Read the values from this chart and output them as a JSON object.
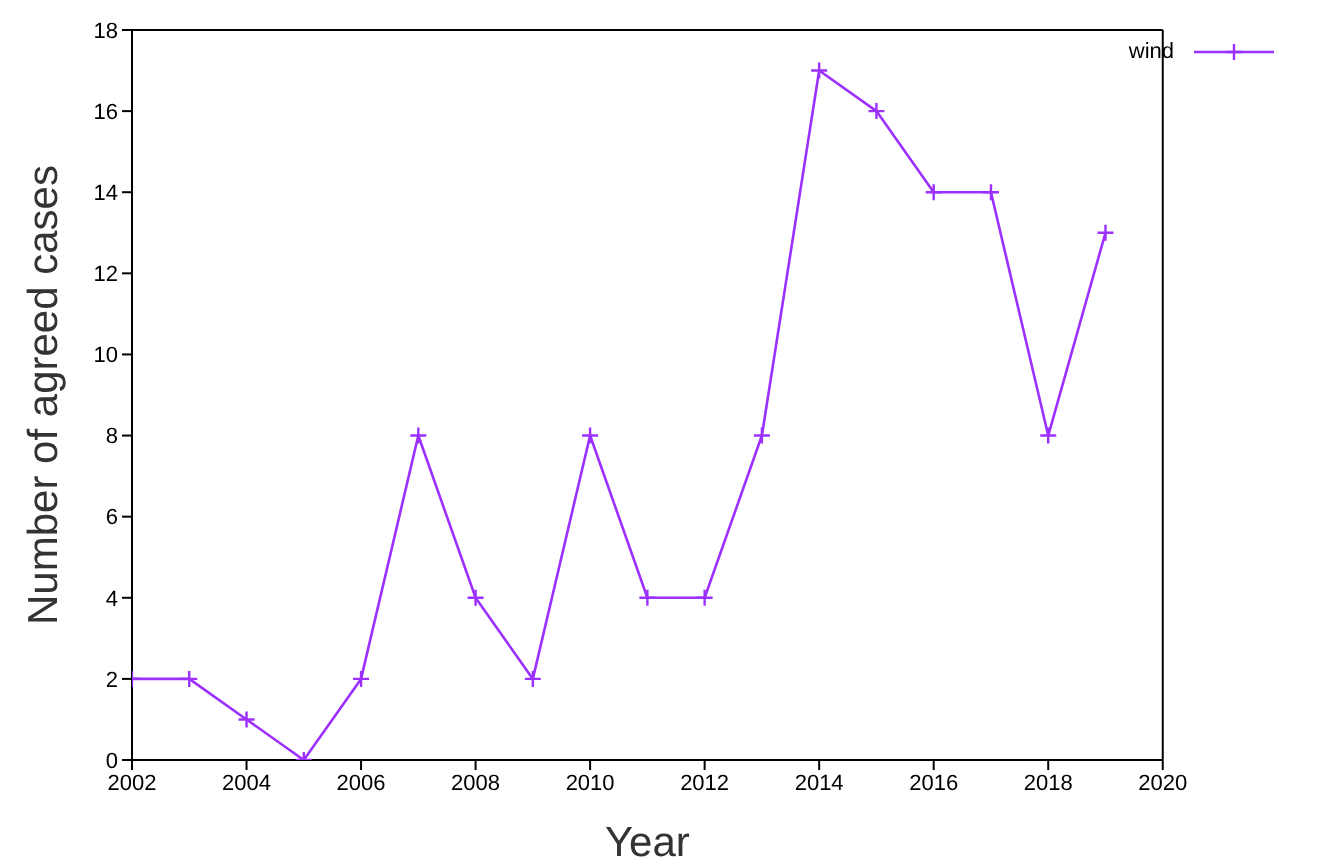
{
  "chart_data": {
    "type": "line",
    "xlabel": "Year",
    "ylabel": "Number of agreed cases",
    "x": [
      2002,
      2003,
      2004,
      2005,
      2006,
      2007,
      2008,
      2009,
      2010,
      2011,
      2012,
      2013,
      2014,
      2015,
      2016,
      2017,
      2018,
      2019
    ],
    "series": [
      {
        "name": "wind",
        "color": "#9b30ff",
        "values": [
          2,
          2,
          1,
          0,
          2,
          8,
          4,
          2,
          8,
          4,
          4,
          8,
          17,
          16,
          14,
          14,
          8,
          13
        ]
      }
    ],
    "xlim": [
      2002,
      2020
    ],
    "xticks": [
      2002,
      2004,
      2006,
      2008,
      2010,
      2012,
      2014,
      2016,
      2018,
      2020
    ],
    "ylim": [
      0,
      18
    ],
    "yticks": [
      0,
      2,
      4,
      6,
      8,
      10,
      12,
      14,
      16,
      18
    ],
    "grid": false,
    "legend": "top right",
    "marker": "cross",
    "line_style": "solid"
  }
}
